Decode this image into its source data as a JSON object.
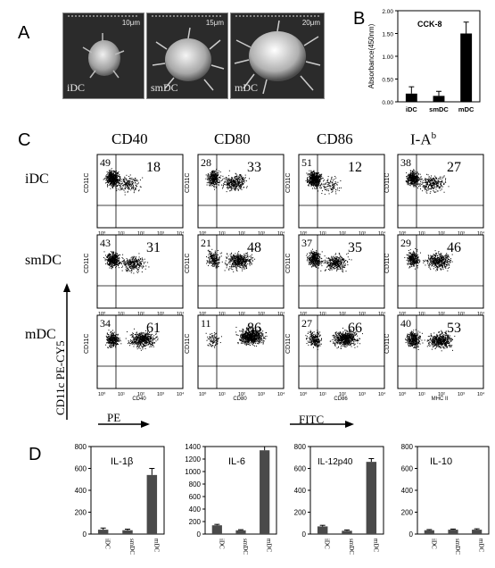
{
  "panel_labels": {
    "a": "A",
    "b": "B",
    "c": "C",
    "d": "D"
  },
  "sem_images": [
    {
      "label": "iDC",
      "scale": "10μm"
    },
    {
      "label": "smDC",
      "scale": "15μm"
    },
    {
      "label": "mDC",
      "scale": "20μm"
    }
  ],
  "flow": {
    "columns": [
      "CD40",
      "CD80",
      "CD86",
      "I-A"
    ],
    "column_superscript": "b",
    "rows": [
      "iDC",
      "smDC",
      "mDC"
    ],
    "x_axis_labels": [
      "CD40",
      "CD80",
      "CD86",
      "MHC II"
    ],
    "y_axis_label": "CD11C",
    "ticks": [
      "10⁰",
      "10¹",
      "10²",
      "10³",
      "10⁴"
    ],
    "quadrant_values": [
      [
        {
          "ul": "49",
          "ur": "18"
        },
        {
          "ul": "28",
          "ur": "33"
        },
        {
          "ul": "51",
          "ur": "12"
        },
        {
          "ul": "38",
          "ur": "27"
        }
      ],
      [
        {
          "ul": "43",
          "ur": "31"
        },
        {
          "ul": "21",
          "ur": "48"
        },
        {
          "ul": "37",
          "ur": "35"
        },
        {
          "ul": "29",
          "ur": "46"
        }
      ],
      [
        {
          "ul": "34",
          "ur": "61"
        },
        {
          "ul": "11",
          "ur": "86"
        },
        {
          "ul": "27",
          "ur": "66"
        },
        {
          "ul": "40",
          "ur": "53"
        }
      ]
    ],
    "side_axis_label": "CD11c  PE-CY5",
    "bottom_labels": {
      "pe": "PE",
      "fitc": "FITC"
    }
  },
  "chart_data": [
    {
      "type": "bar",
      "title": "CCK-8",
      "ylabel": "Absorbance(450nm)",
      "categories": [
        "iDC",
        "smDC",
        "mDC"
      ],
      "values": [
        0.18,
        0.13,
        1.5
      ],
      "errors": [
        0.15,
        0.1,
        0.25
      ],
      "ylim": [
        0,
        2.0
      ],
      "yticks": [
        "0.00",
        "0.50",
        "1.00",
        "1.50",
        "2.00"
      ],
      "ytick_values": [
        0,
        0.5,
        1.0,
        1.5,
        2.0
      ],
      "bar_color": "#000000"
    },
    {
      "type": "bar",
      "title": "IL-1β",
      "categories": [
        "iDC",
        "smDC",
        "mDC"
      ],
      "values": [
        40,
        35,
        540
      ],
      "errors": [
        15,
        10,
        60
      ],
      "ylim": [
        0,
        800
      ],
      "yticks": [
        "0",
        "200",
        "400",
        "600",
        "800"
      ],
      "ytick_values": [
        0,
        200,
        400,
        600,
        800
      ],
      "bar_color": "#4a4a4a"
    },
    {
      "type": "bar",
      "title": "IL-6",
      "categories": [
        "iDC",
        "smDC",
        "mDC"
      ],
      "values": [
        140,
        60,
        1340
      ],
      "errors": [
        15,
        10,
        60
      ],
      "ylim": [
        0,
        1400
      ],
      "yticks": [
        "0",
        "200",
        "400",
        "600",
        "800",
        "1000",
        "1200",
        "1400"
      ],
      "ytick_values": [
        0,
        200,
        400,
        600,
        800,
        1000,
        1200,
        1400
      ],
      "bar_color": "#4a4a4a"
    },
    {
      "type": "bar",
      "title": "IL-12p40",
      "categories": [
        "iDC",
        "smDC",
        "mDC"
      ],
      "values": [
        70,
        30,
        660
      ],
      "errors": [
        10,
        8,
        30
      ],
      "ylim": [
        0,
        800
      ],
      "yticks": [
        "0",
        "200",
        "400",
        "600",
        "800"
      ],
      "ytick_values": [
        0,
        200,
        400,
        600,
        800
      ],
      "bar_color": "#4a4a4a"
    },
    {
      "type": "bar",
      "title": "IL-10",
      "categories": [
        "iDC",
        "smDC",
        "mDC"
      ],
      "values": [
        35,
        40,
        40
      ],
      "errors": [
        6,
        6,
        8
      ],
      "ylim": [
        0,
        800
      ],
      "yticks": [
        "0",
        "200",
        "400",
        "600",
        "800"
      ],
      "ytick_values": [
        0,
        200,
        400,
        600,
        800
      ],
      "bar_color": "#4a4a4a"
    }
  ]
}
